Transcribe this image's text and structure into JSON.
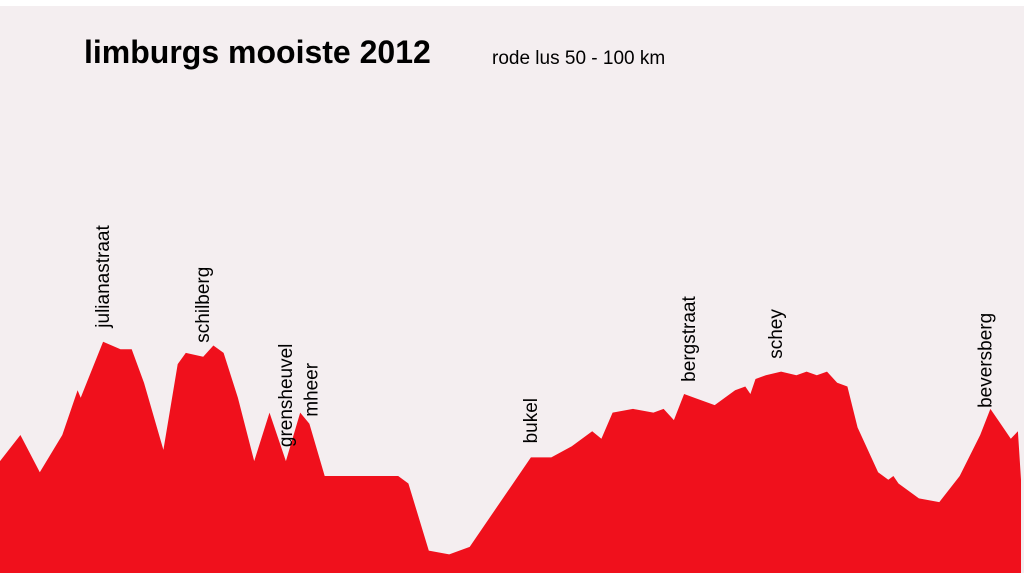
{
  "title": "limburgs mooiste 2012",
  "subtitle": "rode lus  50 - 100 km",
  "colors": {
    "profile": "#f0101c",
    "background": "#f4eef0",
    "text": "#000000"
  },
  "chart_data": {
    "type": "area",
    "title": "limburgs mooiste 2012",
    "subtitle": "rode lus  50 - 100 km",
    "xlabel": "",
    "ylabel": "",
    "grid": false,
    "xlim": [
      0,
      100
    ],
    "ylim": [
      0,
      100
    ],
    "series": [
      {
        "x": [
          0,
          2.0,
          3.9,
          6.1,
          7.6,
          7.9,
          10.1,
          11.8,
          12.9,
          14.1,
          16.0,
          17.4,
          18.2,
          19.9,
          20.9,
          21.9,
          23.3,
          24.9,
          26.4,
          28.0,
          29.4,
          30.3,
          31.8,
          34.0,
          36.0,
          39.0,
          40.0,
          42.0,
          44.0,
          46.0,
          48.0,
          50.0,
          52.0,
          54.0,
          56.0,
          58.0,
          58.9,
          60.0,
          62.0,
          64.0,
          65.0,
          66.0,
          67.0,
          68.0,
          70.0,
          72.0,
          73.0,
          73.5,
          74.0,
          75.0,
          76.5,
          78.0,
          79.0,
          80.0,
          81.0,
          82.0,
          83.0,
          84.0,
          86.0,
          87.0,
          87.5,
          88.0,
          90.0,
          92.0,
          94.0,
          96.0,
          97.0,
          98.0,
          99.0,
          99.7,
          100
        ],
        "y": [
          30,
          37,
          27,
          37,
          49,
          47,
          62,
          60,
          60,
          51,
          33,
          56,
          59,
          58,
          61,
          59,
          47,
          30,
          43,
          30,
          43,
          40,
          26,
          26,
          26,
          26,
          24,
          6,
          5,
          7,
          15,
          23,
          31,
          31,
          34,
          38,
          36,
          43,
          44,
          43,
          44,
          41,
          48,
          47,
          45,
          49,
          50,
          48,
          52,
          53,
          54,
          53,
          54,
          53,
          54,
          51,
          50,
          39,
          27,
          25,
          26,
          24,
          20,
          19,
          26,
          37,
          44,
          40,
          36,
          38,
          25
        ]
      }
    ],
    "climbs": [
      {
        "name": "julianastraat",
        "x": 10.1
      },
      {
        "name": "schilberg",
        "x": 19.9
      },
      {
        "name": "grensheuvel",
        "x": 28.0
      },
      {
        "name": "mheer",
        "x": 30.5
      },
      {
        "name": "bukel",
        "x": 52.0
      },
      {
        "name": "bergstraat",
        "x": 67.5
      },
      {
        "name": "schey",
        "x": 76.0
      },
      {
        "name": "beversberg",
        "x": 96.5
      }
    ]
  }
}
